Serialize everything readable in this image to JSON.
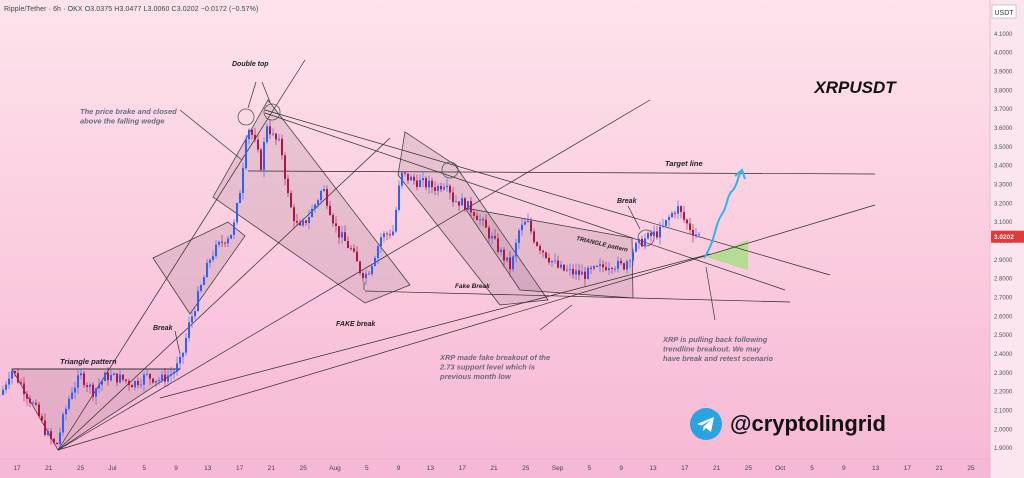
{
  "header": {
    "symbol_line": "Ripple/Tether · 6h · OKX",
    "ohlc": "O3.0375 H3.0477 L3.0060 C3.0202 −0.0172 (−0.57%)"
  },
  "brand": {
    "handle": "@cryptolingrid",
    "icon": "telegram-icon"
  },
  "colors": {
    "up": "#2962ff",
    "down": "#b01545",
    "price_badge": "#e03a3a",
    "target_zone": "#9fe07a",
    "projection": "#2ab8e8"
  },
  "chart_data": {
    "type": "candlestick",
    "title": "XRPUSDT",
    "quote_currency": "USDT",
    "y_range": [
      1.85,
      4.15
    ],
    "y_ticks": [
      "4.1000",
      "4.0000",
      "3.9000",
      "3.8000",
      "3.7000",
      "3.6000",
      "3.5000",
      "3.4000",
      "3.3000",
      "3.2000",
      "3.1000",
      "3.0000",
      "2.9000",
      "2.8000",
      "2.7000",
      "2.6000",
      "2.5000",
      "2.4000",
      "2.3000",
      "2.2000",
      "2.1000",
      "2.0000",
      "1.9000"
    ],
    "x_ticks": [
      "17",
      "21",
      "25",
      "Jul",
      "5",
      "9",
      "13",
      "17",
      "21",
      "25",
      "Aug",
      "5",
      "9",
      "13",
      "17",
      "21",
      "25",
      "Sep",
      "5",
      "9",
      "13",
      "17",
      "21",
      "25",
      "Oct",
      "5",
      "9",
      "13",
      "17",
      "21",
      "25"
    ],
    "last_price": "3.0202",
    "price_path": [
      [
        0.0,
        2.18
      ],
      [
        10,
        2.32
      ],
      [
        22,
        2.22
      ],
      [
        35,
        2.1
      ],
      [
        45,
        1.98
      ],
      [
        55,
        1.9
      ],
      [
        62,
        2.05
      ],
      [
        70,
        2.2
      ],
      [
        80,
        2.28
      ],
      [
        92,
        2.2
      ],
      [
        105,
        2.28
      ],
      [
        118,
        2.27
      ],
      [
        132,
        2.24
      ],
      [
        145,
        2.28
      ],
      [
        160,
        2.26
      ],
      [
        172,
        2.3
      ],
      [
        180,
        2.36
      ],
      [
        188,
        2.55
      ],
      [
        198,
        2.72
      ],
      [
        210,
        2.92
      ],
      [
        222,
        3.0
      ],
      [
        232,
        3.05
      ],
      [
        240,
        3.3
      ],
      [
        246,
        3.62
      ],
      [
        252,
        3.55
      ],
      [
        260,
        3.4
      ],
      [
        266,
        3.62
      ],
      [
        272,
        3.55
      ],
      [
        280,
        3.5
      ],
      [
        288,
        3.2
      ],
      [
        298,
        3.05
      ],
      [
        310,
        3.15
      ],
      [
        322,
        3.28
      ],
      [
        336,
        3.05
      ],
      [
        350,
        2.95
      ],
      [
        360,
        2.83
      ],
      [
        366,
        2.82
      ],
      [
        372,
        2.9
      ],
      [
        380,
        3.02
      ],
      [
        392,
        3.05
      ],
      [
        400,
        3.35
      ],
      [
        412,
        3.32
      ],
      [
        424,
        3.3
      ],
      [
        436,
        3.28
      ],
      [
        446,
        3.32
      ],
      [
        452,
        3.22
      ],
      [
        462,
        3.2
      ],
      [
        474,
        3.15
      ],
      [
        486,
        3.05
      ],
      [
        498,
        2.95
      ],
      [
        510,
        2.85
      ],
      [
        518,
        3.05
      ],
      [
        526,
        3.1
      ],
      [
        534,
        3.0
      ],
      [
        546,
        2.92
      ],
      [
        558,
        2.85
      ],
      [
        570,
        2.83
      ],
      [
        584,
        2.82
      ],
      [
        598,
        2.85
      ],
      [
        610,
        2.88
      ],
      [
        622,
        2.86
      ],
      [
        632,
        2.95
      ],
      [
        642,
        3.0
      ],
      [
        652,
        3.03
      ],
      [
        660,
        3.05
      ],
      [
        668,
        3.12
      ],
      [
        676,
        3.18
      ],
      [
        684,
        3.1
      ],
      [
        692,
        3.05
      ],
      [
        700,
        3.02
      ]
    ],
    "patterns": [
      {
        "label": "Triangle pattern",
        "kind": "triangle"
      },
      {
        "label": "TRIANGLE pattern",
        "kind": "triangle"
      },
      {
        "label": "Double top",
        "kind": "reversal"
      },
      {
        "label": "FAKE break",
        "kind": "fake_breakdown"
      },
      {
        "label": "Fake Break",
        "kind": "fake_breakdown"
      }
    ],
    "levels": [
      {
        "label": "Target line",
        "value": 3.33
      },
      {
        "label": "support",
        "value": 2.73
      }
    ],
    "annotations": [
      {
        "text": "The price brake and closed\nabove the falling wedge"
      },
      {
        "text": "Double top"
      },
      {
        "text": "Break"
      },
      {
        "text": "Break"
      },
      {
        "text": "Triangle pattern"
      },
      {
        "text": "FAKE break"
      },
      {
        "text": "Fake Break"
      },
      {
        "text": "TRIANGLE pattern"
      },
      {
        "text": "Target line"
      },
      {
        "text": "XRP made fake breakout of the\n2.73 support level which is\nprevious month low"
      },
      {
        "text": "XRP is pulling back following\ntrendline breakout. We may\nhave break and retest scenario"
      }
    ]
  }
}
